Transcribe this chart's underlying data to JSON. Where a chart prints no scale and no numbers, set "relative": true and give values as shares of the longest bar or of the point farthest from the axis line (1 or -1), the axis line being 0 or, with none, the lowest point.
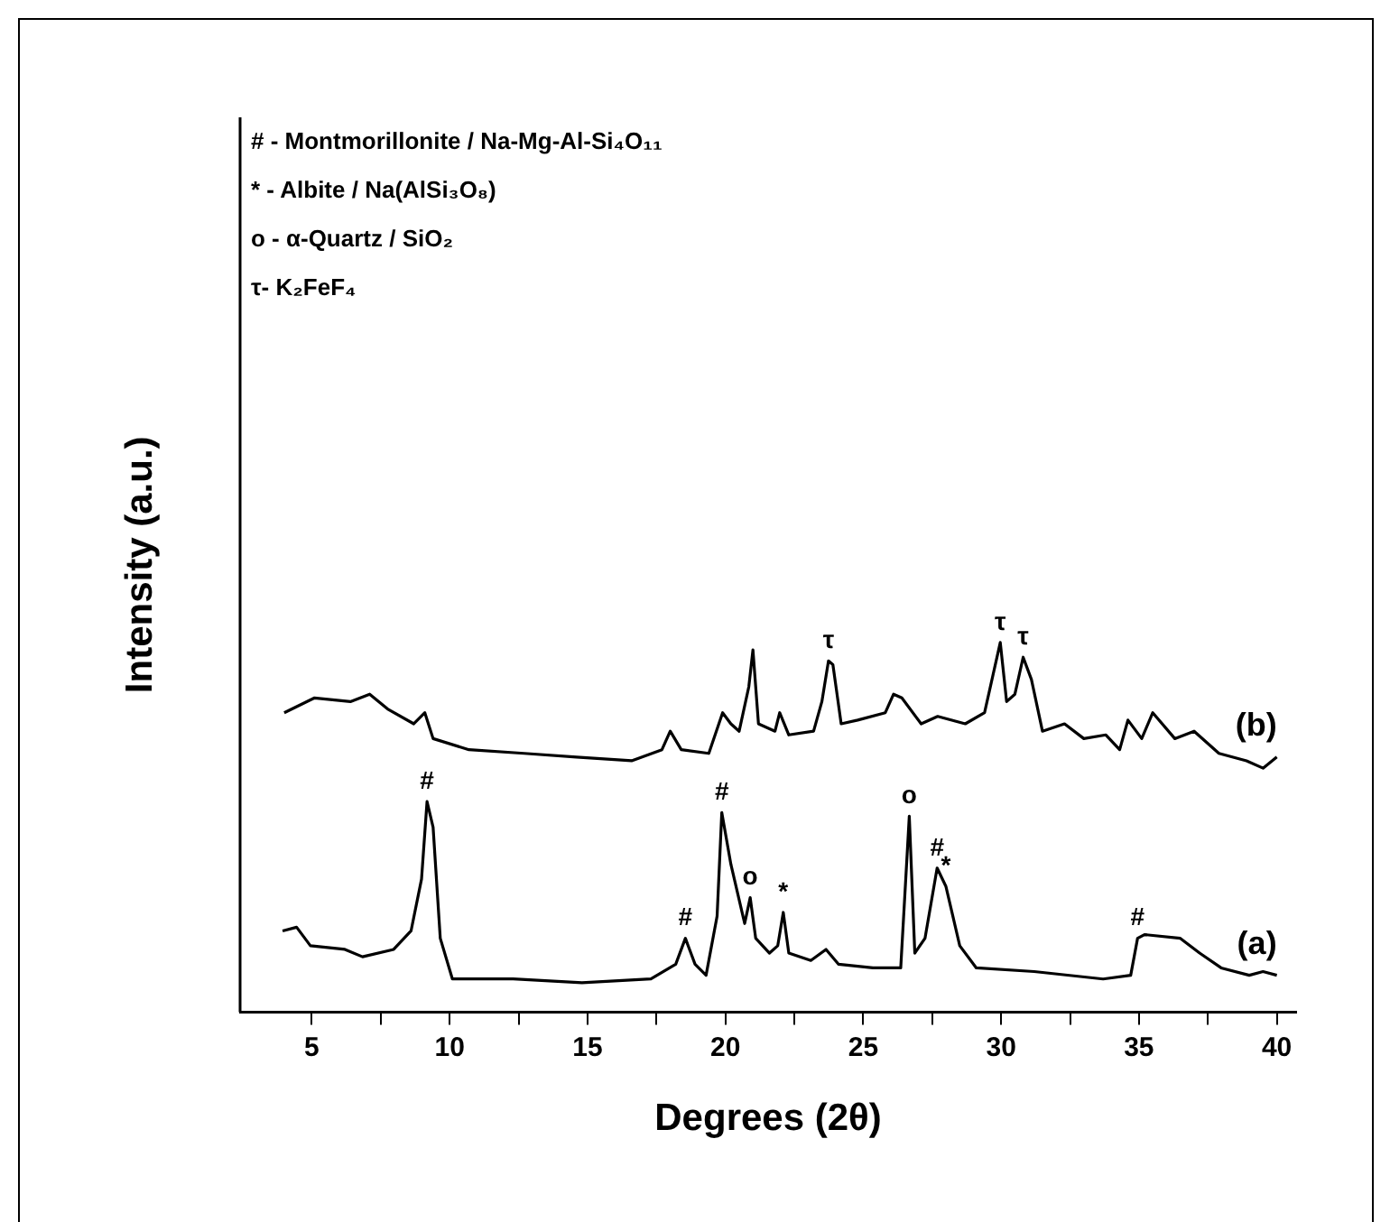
{
  "chart_data": {
    "type": "line",
    "relative": true,
    "xlabel": "Degrees (2θ)",
    "ylabel": "Intensity (a.u.)",
    "xlim": [
      2.4,
      40.7
    ],
    "xticks": [
      5,
      {
        "value": 7.5,
        "label": null
      },
      10,
      {
        "value": 12.5,
        "label": null
      },
      15,
      {
        "value": 17.5,
        "label": null
      },
      20,
      {
        "value": 22.5,
        "label": null
      },
      25,
      {
        "value": 27.5,
        "label": null
      },
      30,
      {
        "value": 32.5,
        "label": null
      },
      35,
      {
        "value": 37.5,
        "label": null
      },
      40
    ],
    "grid": false,
    "legend": false,
    "marker": "none",
    "line_style": "solid",
    "series": [
      {
        "name": "(b)",
        "color": "#000000",
        "x": [
          4.0,
          5.1,
          6.4,
          7.1,
          7.75,
          8.7,
          9.1,
          9.4,
          10.7,
          12.7,
          14.6,
          16.6,
          17.7,
          18.0,
          18.4,
          19.4,
          19.9,
          20.2,
          20.5,
          20.85,
          21.0,
          21.2,
          21.8,
          21.97,
          22.3,
          23.2,
          23.5,
          23.74,
          23.9,
          24.2,
          24.8,
          25.8,
          26.1,
          26.4,
          27.1,
          27.7,
          28.7,
          29.4,
          29.97,
          30.2,
          30.5,
          30.8,
          31.1,
          31.5,
          32.3,
          33.0,
          33.8,
          34.3,
          34.6,
          35.1,
          35.5,
          36.3,
          37.0,
          37.9,
          38.9,
          39.5,
          40.0
        ],
        "values": [
          0.81,
          0.85,
          0.84,
          0.86,
          0.82,
          0.78,
          0.81,
          0.74,
          0.71,
          0.7,
          0.69,
          0.68,
          0.71,
          0.76,
          0.71,
          0.7,
          0.81,
          0.78,
          0.76,
          0.88,
          0.98,
          0.78,
          0.76,
          0.81,
          0.75,
          0.76,
          0.84,
          0.95,
          0.94,
          0.78,
          0.79,
          0.81,
          0.86,
          0.85,
          0.78,
          0.8,
          0.78,
          0.81,
          1.0,
          0.84,
          0.86,
          0.96,
          0.9,
          0.76,
          0.78,
          0.74,
          0.75,
          0.71,
          0.79,
          0.74,
          0.81,
          0.74,
          0.76,
          0.7,
          0.68,
          0.66,
          0.69
        ]
      },
      {
        "name": "(a)",
        "color": "#000000",
        "x": [
          3.94,
          4.45,
          4.95,
          6.2,
          6.84,
          7.97,
          8.6,
          8.98,
          9.18,
          9.4,
          9.66,
          10.1,
          12.3,
          14.8,
          17.3,
          18.2,
          18.55,
          18.9,
          19.3,
          19.7,
          19.87,
          20.2,
          20.7,
          20.9,
          21.1,
          21.6,
          21.9,
          22.1,
          22.3,
          23.1,
          23.65,
          24.1,
          25.35,
          26.36,
          26.67,
          26.87,
          27.24,
          27.68,
          28.0,
          28.5,
          29.1,
          31.2,
          33.7,
          34.7,
          34.95,
          35.2,
          36.5,
          37.2,
          37.98,
          39.0,
          39.5,
          40.0
        ],
        "values": [
          0.22,
          0.23,
          0.18,
          0.17,
          0.15,
          0.17,
          0.22,
          0.36,
          0.57,
          0.5,
          0.2,
          0.09,
          0.09,
          0.08,
          0.09,
          0.13,
          0.2,
          0.13,
          0.1,
          0.26,
          0.54,
          0.4,
          0.24,
          0.31,
          0.2,
          0.16,
          0.18,
          0.27,
          0.16,
          0.14,
          0.17,
          0.13,
          0.12,
          0.12,
          0.53,
          0.16,
          0.2,
          0.39,
          0.34,
          0.18,
          0.12,
          0.11,
          0.09,
          0.1,
          0.2,
          0.21,
          0.2,
          0.16,
          0.12,
          0.1,
          0.11,
          0.1
        ]
      }
    ],
    "annotations": [
      "# - Montmorillonite / Na-Mg-Al-Si₄O₁₁",
      "* - Albite / Na(AlSi₃O₈)",
      "o - α-Quartz / SiO₂",
      "τ- K₂FeF₄",
      {
        "text": "#",
        "x": 9.18,
        "y": 0.57
      },
      {
        "text": "#",
        "x": 18.55,
        "y": 0.2
      },
      {
        "text": "#",
        "x": 19.87,
        "y": 0.54
      },
      {
        "text": "o",
        "x": 20.9,
        "y": 0.31
      },
      {
        "text": "*",
        "x": 22.1,
        "y": 0.27
      },
      {
        "text": "o",
        "x": 26.67,
        "y": 0.53
      },
      {
        "text": "#",
        "x": 27.68,
        "y": 0.39
      },
      {
        "text": "*",
        "x": 28.0,
        "y": 0.34
      },
      {
        "text": "#",
        "x": 34.95,
        "y": 0.2
      },
      {
        "text": "τ",
        "x": 23.74,
        "y": 0.95
      },
      {
        "text": "τ",
        "x": 29.97,
        "y": 1.0
      },
      {
        "text": "τ",
        "x": 30.8,
        "y": 0.96
      }
    ]
  }
}
